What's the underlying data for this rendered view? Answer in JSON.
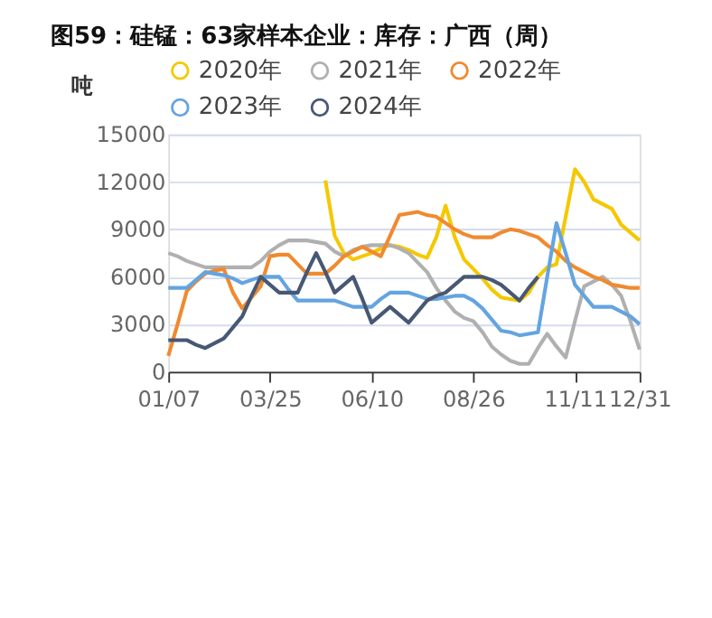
{
  "chart_data": {
    "type": "line",
    "title": "图59：硅锰：63家样本企业：库存：广西（周）",
    "ylabel": "吨",
    "categories": [
      "01/07",
      null,
      null,
      null,
      null,
      null,
      null,
      null,
      null,
      null,
      null,
      "03/25",
      null,
      null,
      null,
      null,
      null,
      null,
      null,
      null,
      null,
      null,
      "06/10",
      null,
      null,
      null,
      null,
      null,
      null,
      null,
      null,
      null,
      null,
      "08/26",
      null,
      null,
      null,
      null,
      null,
      null,
      null,
      null,
      null,
      null,
      "11/11",
      null,
      null,
      null,
      null,
      null,
      null,
      "12/31"
    ],
    "series": [
      {
        "name": "2020年",
        "color": "#f5c800",
        "values": [
          null,
          null,
          null,
          null,
          null,
          null,
          null,
          null,
          null,
          null,
          null,
          null,
          null,
          null,
          null,
          null,
          null,
          12100,
          8600,
          7500,
          7100,
          7300,
          7500,
          7800,
          8000,
          7900,
          7700,
          7400,
          7200,
          8500,
          10500,
          8500,
          7100,
          6500,
          5900,
          5200,
          4700,
          4600,
          4500,
          5000,
          6000,
          6600,
          6800,
          9800,
          12800,
          12000,
          10900,
          10600,
          10300,
          9300,
          8800,
          8300
        ]
      },
      {
        "name": "2021年",
        "color": "#b0b0b0",
        "values": [
          7500,
          7300,
          7000,
          6800,
          6600,
          6600,
          6600,
          6600,
          6600,
          6600,
          7000,
          7600,
          8000,
          8300,
          8300,
          8300,
          8200,
          8100,
          7600,
          7300,
          7700,
          7900,
          8000,
          8000,
          8000,
          7800,
          7500,
          6900,
          6300,
          5300,
          4500,
          3800,
          3400,
          3200,
          2500,
          1600,
          1100,
          700,
          500,
          500,
          1500,
          2400,
          1600,
          900,
          3200,
          5400,
          5700,
          6000,
          5500,
          4800,
          3200,
          1400
        ]
      },
      {
        "name": "2022年",
        "color": "#f08a30",
        "values": [
          1000,
          3000,
          5100,
          5700,
          6200,
          6400,
          6500,
          5000,
          4000,
          4700,
          5400,
          7300,
          7400,
          7400,
          6800,
          6200,
          6200,
          6200,
          6700,
          7300,
          7600,
          7900,
          7600,
          7300,
          8600,
          9900,
          10000,
          10100,
          9900,
          9800,
          9400,
          9000,
          8700,
          8500,
          8500,
          8500,
          8800,
          9000,
          8900,
          8700,
          8500,
          8000,
          7600,
          7000,
          6600,
          6300,
          6000,
          5800,
          5500,
          5400,
          5300,
          5300
        ]
      },
      {
        "name": "2023年",
        "color": "#64a4e0",
        "values": [
          5300,
          5300,
          5300,
          5800,
          6300,
          6200,
          6100,
          5900,
          5600,
          5800,
          6000,
          6000,
          6000,
          5200,
          4500,
          4500,
          4500,
          4500,
          4500,
          4300,
          4100,
          4100,
          4100,
          4600,
          5000,
          5000,
          5000,
          4800,
          4600,
          4600,
          4700,
          4800,
          4800,
          4500,
          4000,
          3300,
          2600,
          2500,
          2300,
          2400,
          2500,
          6000,
          9400,
          7500,
          5500,
          4800,
          4100,
          4100,
          4100,
          3800,
          3500,
          3000
        ]
      },
      {
        "name": "2024年",
        "color": "#475873",
        "values": [
          2000,
          2000,
          2000,
          1700,
          1500,
          1800,
          2100,
          2800,
          3500,
          4800,
          6000,
          5500,
          5000,
          5000,
          5000,
          6300,
          7500,
          6300,
          5000,
          5500,
          6000,
          4600,
          3100,
          3600,
          4100,
          3600,
          3100,
          3800,
          4500,
          4800,
          5000,
          5500,
          6000,
          6000,
          6000,
          5800,
          5500,
          5000,
          4500,
          5300,
          6000,
          null,
          null,
          null,
          null,
          null,
          null,
          null,
          null,
          null,
          null,
          null
        ]
      }
    ],
    "ylim": [
      0,
      15000
    ],
    "yticks": [
      0,
      3000,
      6000,
      9000,
      12000,
      15000
    ],
    "grid": "y",
    "legend": "top"
  }
}
